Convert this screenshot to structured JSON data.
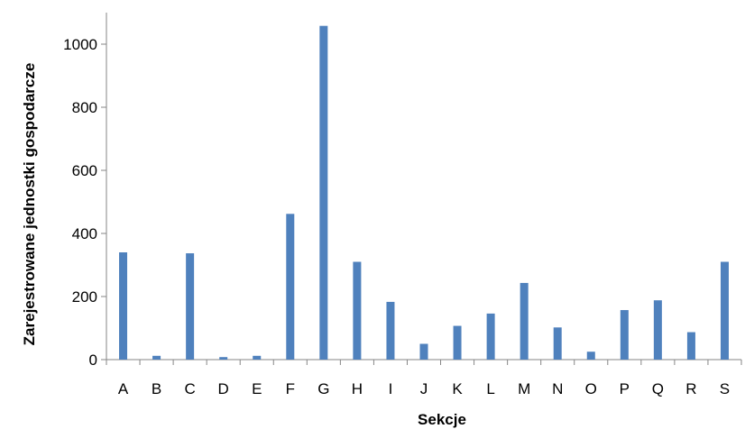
{
  "chart_data": {
    "type": "bar",
    "title": "",
    "xlabel": "Sekcje",
    "ylabel": "Zarejestrowane jednostki gospodarcze",
    "categories": [
      "A",
      "B",
      "C",
      "D",
      "E",
      "F",
      "G",
      "H",
      "I",
      "J",
      "K",
      "L",
      "M",
      "N",
      "O",
      "P",
      "Q",
      "R",
      "S"
    ],
    "values": [
      340,
      12,
      337,
      8,
      12,
      462,
      1058,
      310,
      183,
      50,
      107,
      146,
      243,
      102,
      25,
      157,
      188,
      87,
      310
    ],
    "ylim": [
      0,
      1000
    ],
    "yticks": [
      "0",
      "200",
      "400",
      "600",
      "800",
      "1000"
    ],
    "grid": false,
    "legend": "none",
    "colors": {
      "bar": "#4F81BD",
      "axis": "#868686"
    }
  }
}
